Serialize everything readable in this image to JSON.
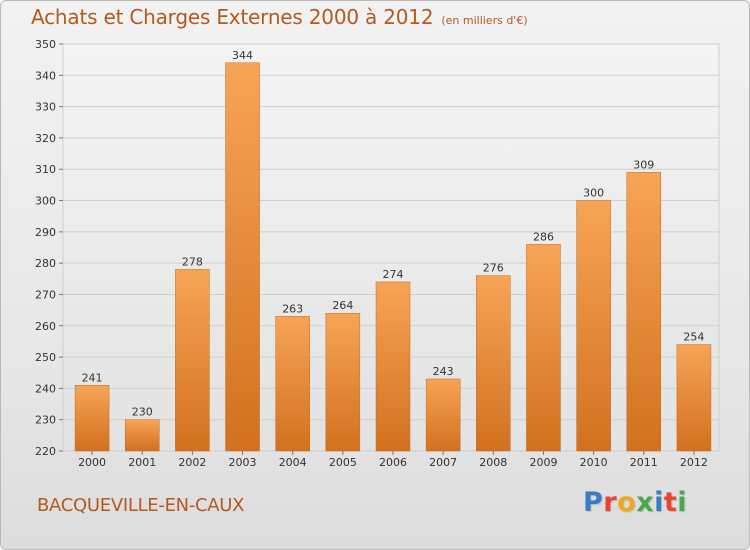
{
  "header": {
    "title": "Achats et Charges Externes 2000 à 2012",
    "subtitle": "(en milliers d'€)"
  },
  "footer": {
    "commune": "BACQUEVILLE-EN-CAUX",
    "logo_letters": [
      "P",
      "r",
      "o",
      "x",
      "i",
      "t",
      "i"
    ]
  },
  "colors": {
    "bar_top": "#f7a456",
    "bar_bottom": "#d2711f",
    "accent_text": "#b35a1f",
    "logo": [
      "#3b7bbf",
      "#e8462a",
      "#f2a81c",
      "#4aa84a",
      "#3b7bbf",
      "#e8462a",
      "#4aa84a"
    ]
  },
  "chart_data": {
    "type": "bar",
    "title": "Achats et Charges Externes 2000 à 2012",
    "unit": "(en milliers d'€)",
    "categories": [
      "2000",
      "2001",
      "2002",
      "2003",
      "2004",
      "2005",
      "2006",
      "2007",
      "2008",
      "2009",
      "2010",
      "2011",
      "2012"
    ],
    "values": [
      241,
      230,
      278,
      344,
      263,
      264,
      274,
      243,
      276,
      286,
      300,
      309,
      254
    ],
    "ylim": [
      220,
      350
    ],
    "yticks": [
      220,
      230,
      240,
      250,
      260,
      270,
      280,
      290,
      300,
      310,
      320,
      330,
      340,
      350
    ],
    "xlabel": "",
    "ylabel": "",
    "grid": true
  }
}
